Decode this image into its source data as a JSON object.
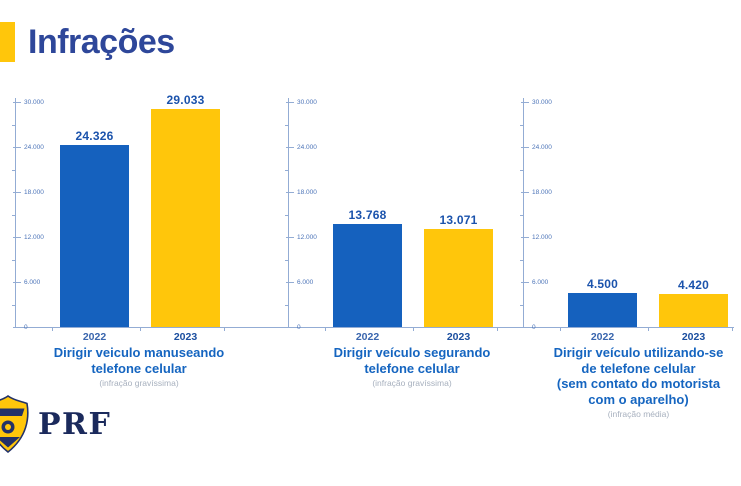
{
  "header": {
    "title": "Infrações"
  },
  "colors": {
    "accent_yellow": "#FFC60B",
    "title_navy": "#2E479A",
    "bar_2022_blue": "#1561BE",
    "bar_2023_yellow": "#FFC60B",
    "axis_light_blue": "#93ACD4",
    "tick_label_blue": "#4C74B8",
    "value_label_blue": "#1B53AC",
    "caption_blue": "#1565C0",
    "subcaption_gray": "#A7B0BE",
    "logo_navy": "#1B2A5C"
  },
  "icons": {
    "logo_badge": "prf-police-badge"
  },
  "chart_data": [
    {
      "type": "bar",
      "title_lines": [
        "Dirigir veiculo manuseando",
        "telefone celular"
      ],
      "subtitle": "(infração gravíssima)",
      "categories": [
        "2022",
        "2023"
      ],
      "values": [
        24326,
        29033
      ],
      "value_labels": [
        "24.326",
        "29.033"
      ],
      "ylim": [
        0,
        30000
      ],
      "yticks_major": [
        {
          "value": 0,
          "label": "0"
        },
        {
          "value": 6000,
          "label": "6.000"
        },
        {
          "value": 12000,
          "label": "12.000"
        },
        {
          "value": 18000,
          "label": "18.000"
        },
        {
          "value": 24000,
          "label": "24.000"
        },
        {
          "value": 30000,
          "label": "30.000"
        }
      ],
      "yticks_minor": [
        3000,
        9000,
        15000,
        21000,
        27000
      ],
      "grid": false,
      "legend": "none"
    },
    {
      "type": "bar",
      "title_lines": [
        "Dirigir veículo segurando",
        "telefone celular"
      ],
      "subtitle": "(infração gravíssima)",
      "categories": [
        "2022",
        "2023"
      ],
      "values": [
        13768,
        13071
      ],
      "value_labels": [
        "13.768",
        "13.071"
      ],
      "ylim": [
        0,
        30000
      ],
      "yticks_major": [
        {
          "value": 0,
          "label": "0"
        },
        {
          "value": 6000,
          "label": "6.000"
        },
        {
          "value": 12000,
          "label": "12.000"
        },
        {
          "value": 18000,
          "label": "18.000"
        },
        {
          "value": 24000,
          "label": "24.000"
        },
        {
          "value": 30000,
          "label": "30.000"
        }
      ],
      "yticks_minor": [
        3000,
        9000,
        15000,
        21000,
        27000
      ],
      "grid": false,
      "legend": "none"
    },
    {
      "type": "bar",
      "title_lines": [
        "Dirigir veículo utilizando-se",
        "de telefone celular",
        "(sem contato do motorista",
        "com o aparelho)"
      ],
      "subtitle": "(infração média)",
      "categories": [
        "2022",
        "2023"
      ],
      "values": [
        4500,
        4420
      ],
      "value_labels": [
        "4.500",
        "4.420"
      ],
      "ylim": [
        0,
        30000
      ],
      "yticks_major": [
        {
          "value": 0,
          "label": "0"
        },
        {
          "value": 6000,
          "label": "6.000"
        },
        {
          "value": 12000,
          "label": "12.000"
        },
        {
          "value": 18000,
          "label": "18.000"
        },
        {
          "value": 24000,
          "label": "24.000"
        },
        {
          "value": 30000,
          "label": "30.000"
        }
      ],
      "yticks_minor": [
        3000,
        9000,
        15000,
        21000,
        27000
      ],
      "grid": false,
      "legend": "none"
    }
  ],
  "footer": {
    "logo_text": "PRF"
  }
}
